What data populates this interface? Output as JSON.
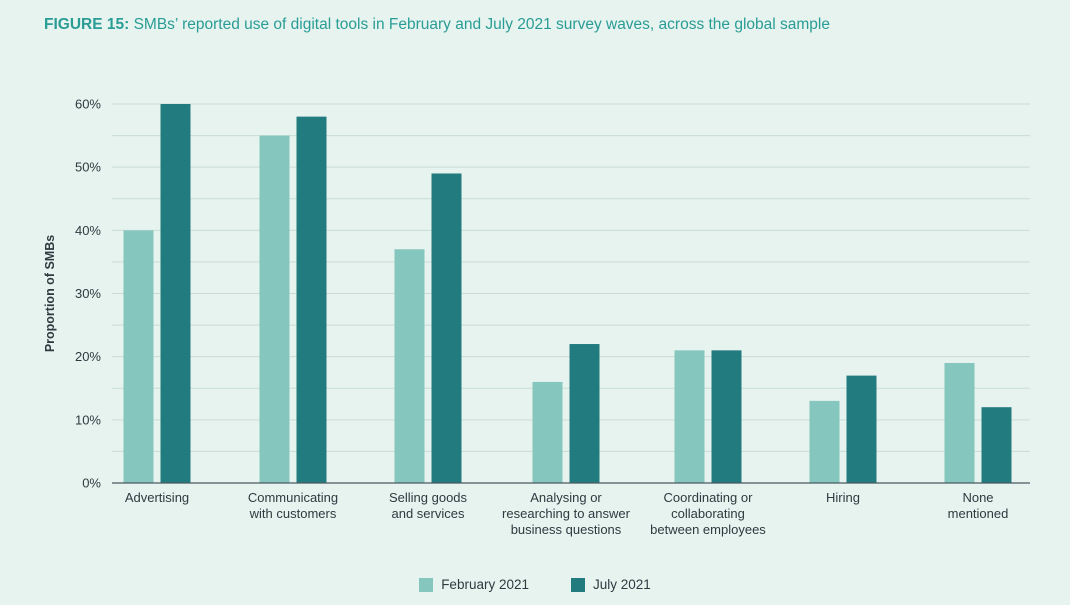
{
  "title": {
    "prefix": "FIGURE 15:",
    "text": "SMBs’ reported use of digital tools in February and July 2021 survey waves, across the global sample"
  },
  "colors": {
    "background": "#e6f3ee",
    "title": "#2a9c96",
    "feb": "#85c6bf",
    "jul": "#227b7f",
    "grid": "#c9ddd6",
    "axis": "#4a5a60",
    "text": "#2e3a40"
  },
  "chart_data": {
    "type": "bar",
    "title": "SMBs’ reported use of digital tools in February and July 2021 survey waves, across the global sample",
    "xlabel": "",
    "ylabel": "Proportion of SMBs",
    "ylim": [
      0,
      60
    ],
    "yticks": [
      0,
      10,
      20,
      30,
      40,
      50,
      60
    ],
    "ytick_labels": [
      "0%",
      "10%",
      "20%",
      "30%",
      "40%",
      "50%",
      "60%"
    ],
    "grid": true,
    "legend_position": "bottom-center",
    "categories": [
      [
        "Advertising"
      ],
      [
        "Communicating",
        "with customers"
      ],
      [
        "Selling goods",
        "and services"
      ],
      [
        "Analysing or",
        "researching to answer",
        "business questions"
      ],
      [
        "Coordinating or",
        "collaborating",
        "between employees"
      ],
      [
        "Hiring"
      ],
      [
        "None",
        "mentioned"
      ]
    ],
    "series": [
      {
        "name": "February 2021",
        "values": [
          40,
          55,
          37,
          16,
          21,
          13,
          19
        ]
      },
      {
        "name": "July 2021",
        "values": [
          60,
          58,
          49,
          22,
          21,
          17,
          12
        ]
      }
    ]
  }
}
